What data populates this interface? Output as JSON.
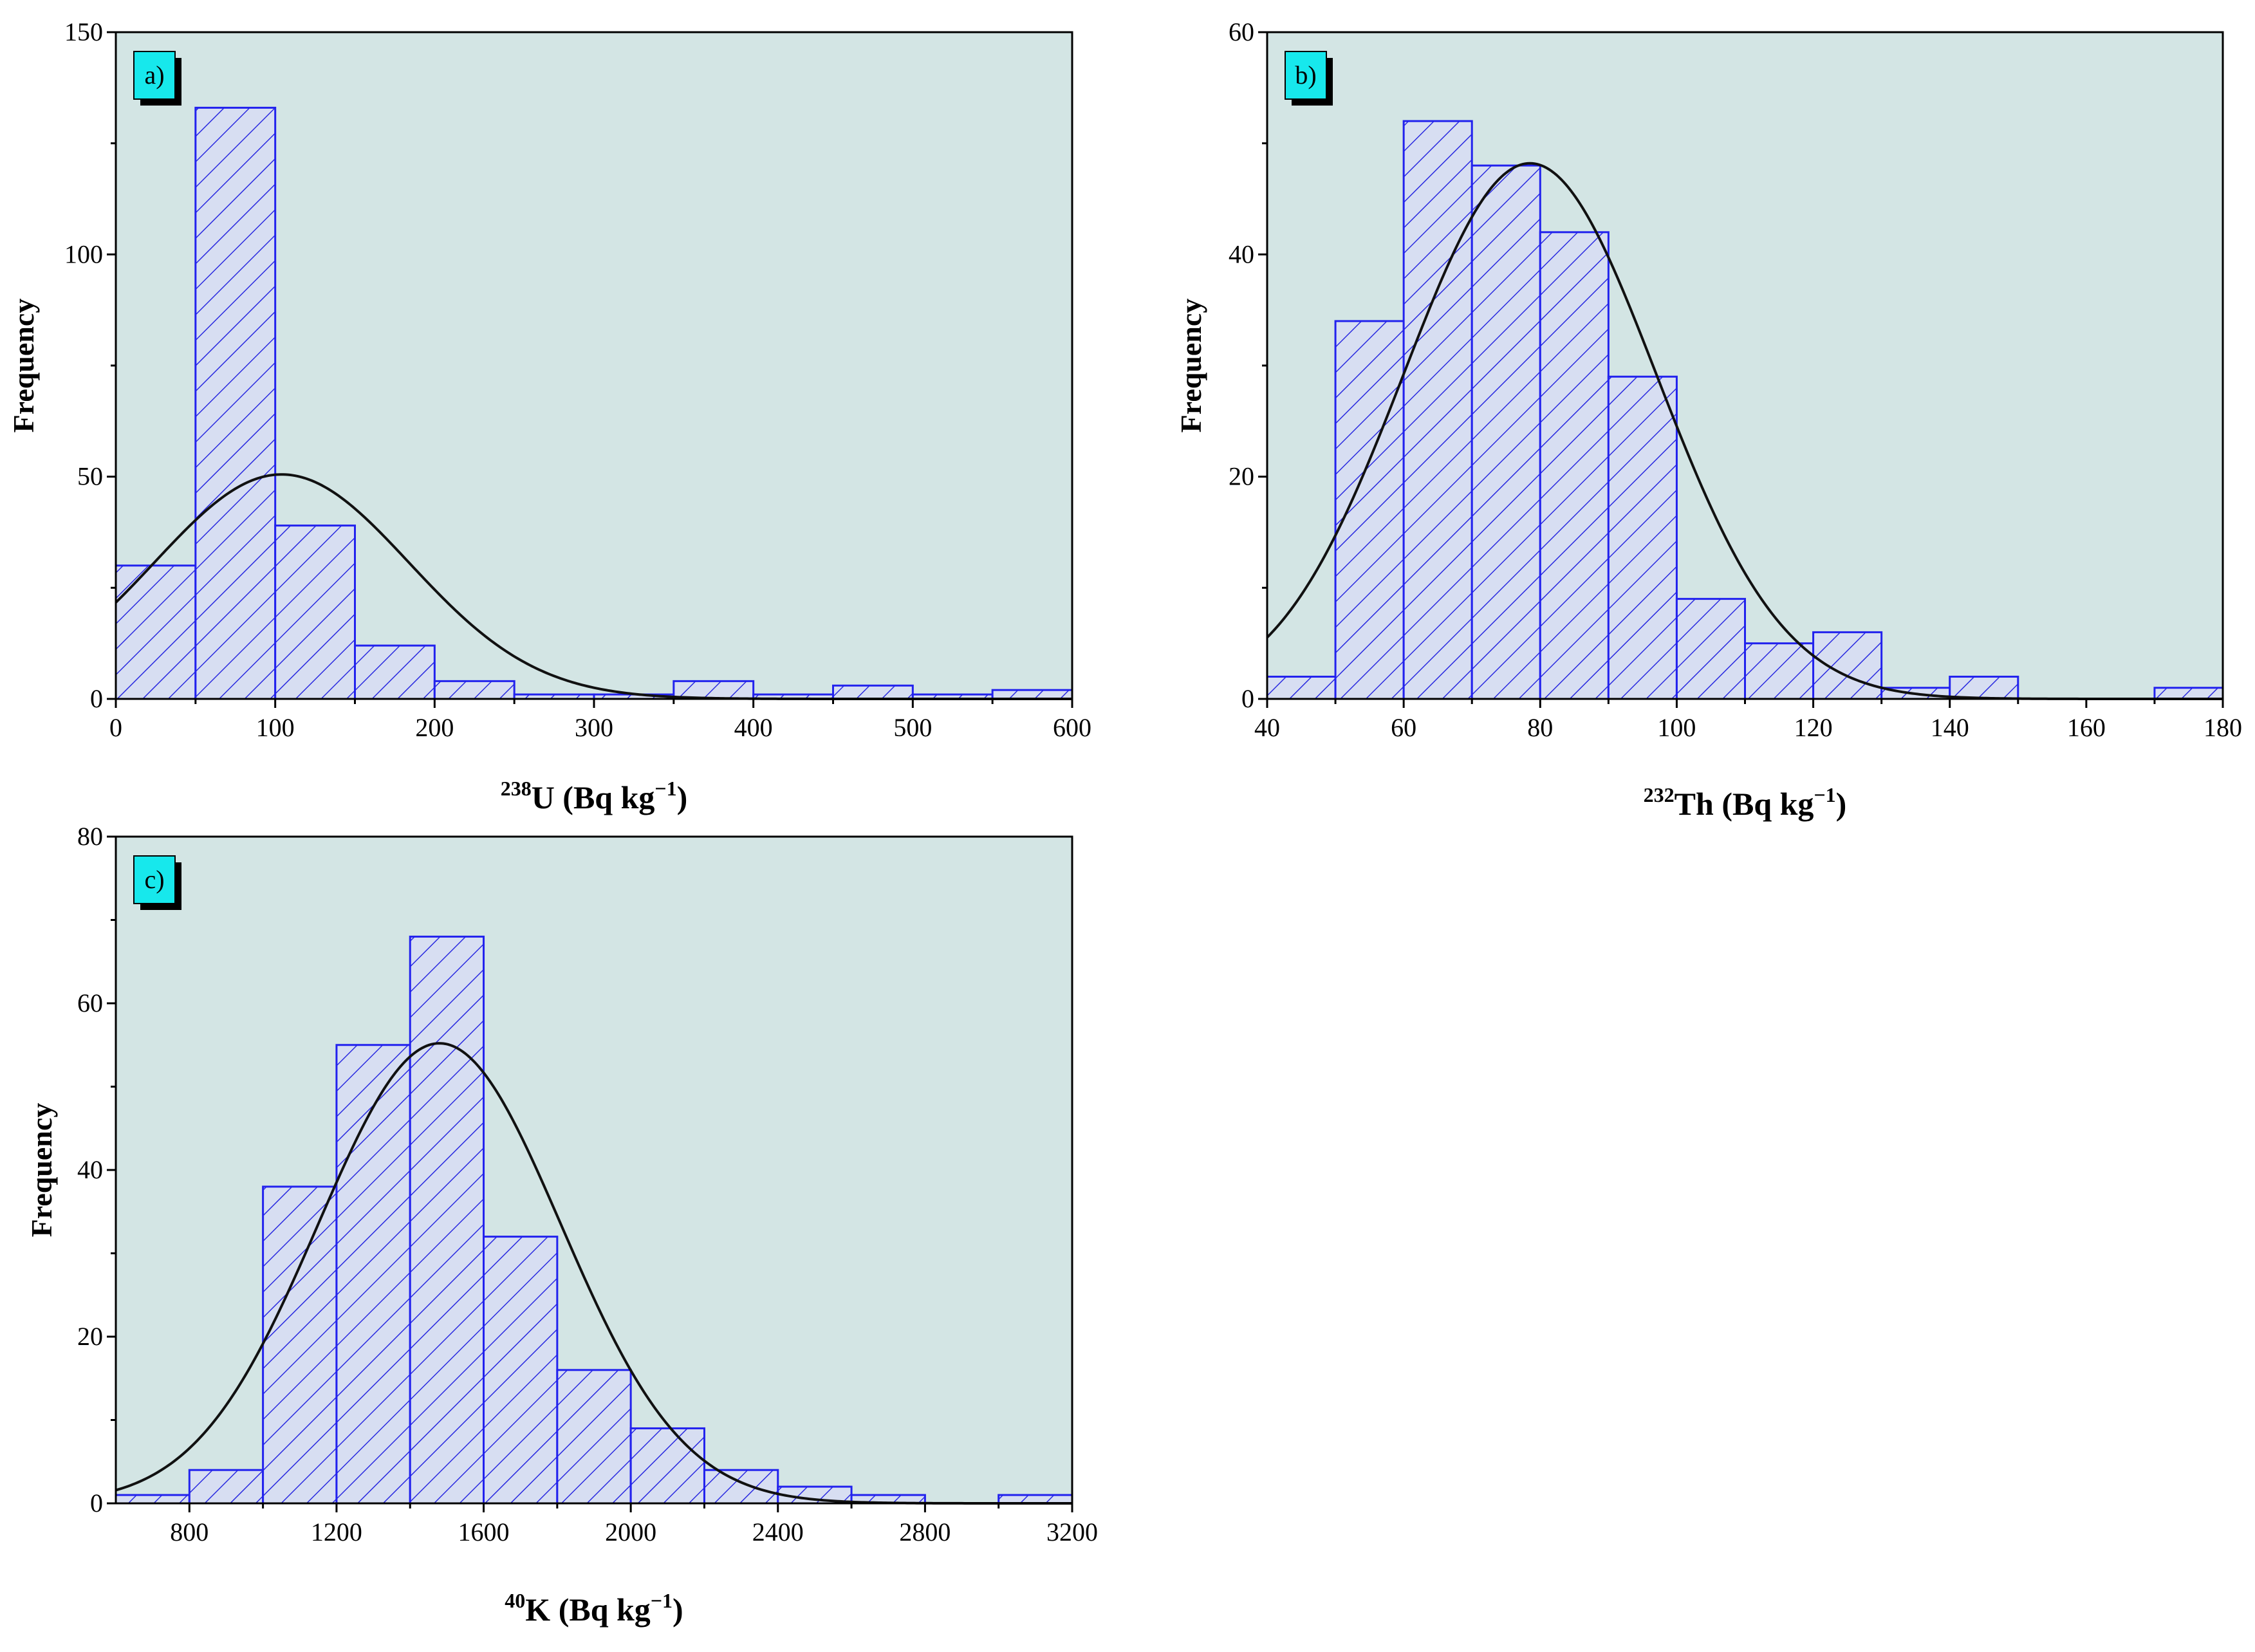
{
  "chart_data": [
    {
      "type": "bar",
      "panel_label": "a)",
      "title": "",
      "ylabel": "Frequency",
      "xlabel": {
        "sup": "238",
        "base": "U",
        "unit": " (Bq kg",
        "exp": "−1",
        "close": ")"
      },
      "xlim": [
        0,
        600
      ],
      "ylim": [
        0,
        150
      ],
      "xticks": [
        0,
        100,
        200,
        300,
        400,
        500,
        600
      ],
      "yticks": [
        0,
        50,
        100,
        150
      ],
      "bin_width": 50,
      "bins": [
        0,
        50,
        100,
        150,
        200,
        250,
        300,
        350,
        400,
        450,
        500,
        550
      ],
      "values": [
        30,
        133,
        39,
        12,
        4,
        1,
        1,
        4,
        1,
        3,
        1,
        2
      ],
      "normal_fit": {
        "mean": 104,
        "sd": 80,
        "peak": 50.5
      },
      "grid": false,
      "legend": "none"
    },
    {
      "type": "bar",
      "panel_label": "b)",
      "title": "",
      "ylabel": "Frequency",
      "xlabel": {
        "sup": "232",
        "base": "Th",
        "unit": " (Bq kg",
        "exp": "−1",
        "close": ")"
      },
      "xlim": [
        40,
        180
      ],
      "ylim": [
        0,
        60
      ],
      "xticks": [
        40,
        60,
        80,
        100,
        120,
        140,
        160,
        180
      ],
      "yticks": [
        0,
        20,
        40,
        60
      ],
      "bin_width": 10,
      "bins": [
        40,
        50,
        60,
        70,
        80,
        90,
        100,
        110,
        120,
        130,
        140,
        150,
        160,
        170
      ],
      "values": [
        2,
        34,
        52,
        48,
        42,
        29,
        9,
        5,
        6,
        1,
        2,
        0,
        0,
        1
      ],
      "normal_fit": {
        "mean": 78.5,
        "sd": 18.5,
        "peak": 48.2
      },
      "grid": false,
      "legend": "none"
    },
    {
      "type": "bar",
      "panel_label": "c)",
      "title": "",
      "ylabel": "Frequency",
      "xlabel": {
        "sup": "40",
        "base": "K",
        "unit": " (Bq kg",
        "exp": "−1",
        "close": ")"
      },
      "xlim": [
        600,
        3200
      ],
      "ylim": [
        0,
        80
      ],
      "xticks": [
        800,
        1200,
        1600,
        2000,
        2400,
        2800,
        3200
      ],
      "yticks": [
        0,
        20,
        40,
        60,
        80
      ],
      "bin_width": 200,
      "bins": [
        600,
        800,
        1000,
        1200,
        1400,
        1600,
        1800,
        2000,
        2200,
        2400,
        2600,
        2800,
        3000
      ],
      "values": [
        1,
        4,
        38,
        55,
        68,
        32,
        16,
        9,
        4,
        2,
        1,
        0,
        1
      ],
      "normal_fit": {
        "mean": 1480,
        "sd": 330,
        "peak": 55.2
      },
      "grid": false,
      "legend": "none"
    }
  ],
  "colors": {
    "plot_background": "#d3e5e4",
    "bar_edge": "#2222ee",
    "hatch": "#2a2ae0",
    "fit_line": "#111111",
    "label_box": "#17e8ec"
  }
}
